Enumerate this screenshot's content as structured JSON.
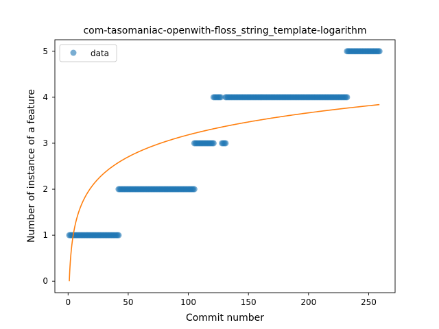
{
  "chart_data": {
    "type": "scatter",
    "title": "com-tasomaniac-openwith-floss_string_template-logarithm",
    "xlabel": "Commit number",
    "ylabel": "Number of instance of a feature",
    "xlim": [
      -11,
      272
    ],
    "ylim": [
      -0.25,
      5.25
    ],
    "xticks": [
      0,
      50,
      100,
      150,
      200,
      250
    ],
    "yticks": [
      0,
      1,
      2,
      3,
      4,
      5
    ],
    "grid": false,
    "legend": {
      "placement": "top-left",
      "entries": [
        "data"
      ]
    },
    "colors": {
      "points": "#1f77b4",
      "fit": "#ff7f0e"
    },
    "series": [
      {
        "name": "data",
        "kind": "scatter",
        "segments": [
          {
            "x_from": 1,
            "x_to": 42,
            "y": 1
          },
          {
            "x_from": 42,
            "x_to": 105,
            "y": 2
          },
          {
            "x_from": 105,
            "x_to": 121,
            "y": 3
          },
          {
            "x_from": 128,
            "x_to": 131,
            "y": 3
          },
          {
            "x_from": 121,
            "x_to": 127,
            "y": 4
          },
          {
            "x_from": 131,
            "x_to": 232,
            "y": 4
          },
          {
            "x_from": 232,
            "x_to": 259,
            "y": 5
          }
        ]
      },
      {
        "kind": "line",
        "model": "logarithmic",
        "a": 0.691,
        "b": 0,
        "x_from": 1,
        "x_to": 259
      }
    ]
  }
}
